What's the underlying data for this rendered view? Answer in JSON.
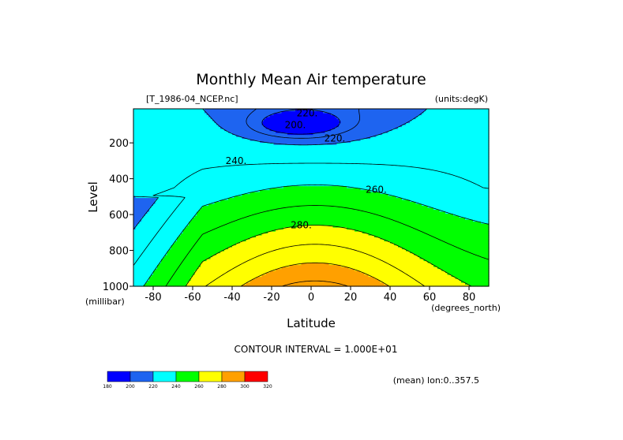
{
  "chart_data": {
    "type": "contour",
    "title": "Monthly Mean Air temperature",
    "source_label": "[T_1986-04_NCEP.nc]",
    "units_label": "(units:degK)",
    "xlabel": "Latitude",
    "ylabel": "Level",
    "x_units": "(degrees_north)",
    "y_units": "(millibar)",
    "xlim": [
      -90,
      90
    ],
    "ylim": [
      1000,
      10
    ],
    "x_ticks": [
      -80,
      -60,
      -40,
      -20,
      0,
      20,
      40,
      60,
      80
    ],
    "x_tick_labels": [
      "-80",
      "-60",
      "-40",
      "-20",
      "0",
      "20",
      "40",
      "60",
      "80"
    ],
    "y_ticks": [
      200,
      400,
      600,
      800,
      1000
    ],
    "y_tick_labels": [
      "200",
      "400",
      "600",
      "800",
      "1000"
    ],
    "contour_interval_text": "CONTOUR INTERVAL = 1.000E+01",
    "contour_levels": [
      200,
      210,
      220,
      230,
      240,
      250,
      260,
      270,
      280,
      290
    ],
    "contour_labels": [
      {
        "text": "220.",
        "lat": -2,
        "level": 35
      },
      {
        "text": "200.",
        "lat": -8,
        "level": 100
      },
      {
        "text": "220.",
        "lat": 12,
        "level": 175
      },
      {
        "text": "240.",
        "lat": -38,
        "level": 300
      },
      {
        "text": "260.",
        "lat": 33,
        "level": 460
      },
      {
        "text": "280.",
        "lat": -5,
        "level": 660
      }
    ],
    "fill_bands": [
      {
        "from": 180,
        "to": 200,
        "color": "#0000ff"
      },
      {
        "from": 200,
        "to": 220,
        "color": "#1e64f0"
      },
      {
        "from": 220,
        "to": 240,
        "color": "#00ffff"
      },
      {
        "from": 240,
        "to": 260,
        "color": "#00ff00"
      },
      {
        "from": 260,
        "to": 280,
        "color": "#ffff00"
      },
      {
        "from": 280,
        "to": 300,
        "color": "#ffa000"
      },
      {
        "from": 300,
        "to": 320,
        "color": "#ff0000"
      }
    ],
    "colorbar_labels": [
      "180",
      "200",
      "220",
      "240",
      "260",
      "280",
      "300",
      "320"
    ],
    "note": "(mean) lon:0..357.5"
  }
}
